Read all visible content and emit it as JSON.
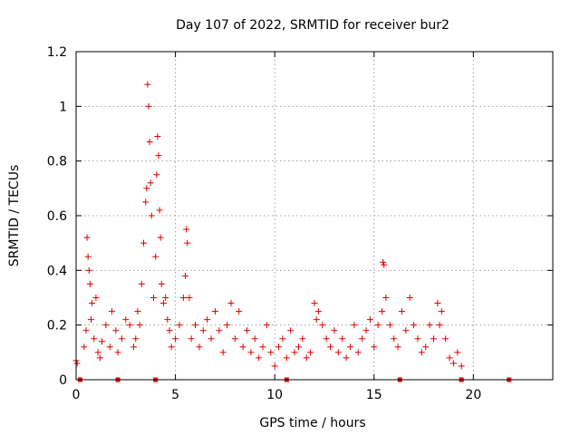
{
  "chart_data": {
    "type": "scatter",
    "title": "Day 107 of 2022, SRMTID for receiver bur2",
    "xlabel": "GPS time / hours",
    "ylabel": "SRMTID / TECUs",
    "xlim": [
      0,
      24
    ],
    "ylim": [
      0,
      1.2
    ],
    "x_ticks": [
      0,
      5,
      10,
      15,
      20
    ],
    "y_ticks": [
      0,
      0.2,
      0.4,
      0.6,
      0.8,
      1,
      1.2
    ],
    "x_tick_labels": [
      "0",
      "5",
      "10",
      "15",
      "20"
    ],
    "y_tick_labels": [
      "0",
      "0.2",
      "0.4",
      "0.6",
      "0.8",
      "1",
      "1.2"
    ],
    "grid": true,
    "marker": "+",
    "color": "#e00000",
    "series": [
      {
        "name": "SRMTID",
        "x": [
          0.0,
          0.05,
          0.4,
          0.5,
          0.55,
          0.6,
          0.65,
          0.7,
          0.75,
          0.8,
          0.9,
          1.0,
          1.1,
          1.2,
          1.3,
          1.5,
          1.7,
          1.8,
          2.0,
          2.1,
          2.3,
          2.5,
          2.7,
          2.9,
          3.0,
          3.1,
          3.2,
          3.3,
          3.4,
          3.5,
          3.55,
          3.6,
          3.65,
          3.7,
          3.75,
          3.8,
          3.9,
          4.0,
          4.05,
          4.1,
          4.15,
          4.2,
          4.25,
          4.3,
          4.4,
          4.5,
          4.6,
          4.7,
          4.8,
          5.0,
          5.2,
          5.4,
          5.5,
          5.55,
          5.6,
          5.7,
          5.8,
          6.0,
          6.2,
          6.4,
          6.6,
          6.8,
          7.0,
          7.2,
          7.4,
          7.6,
          7.8,
          8.0,
          8.2,
          8.4,
          8.6,
          8.8,
          9.0,
          9.2,
          9.4,
          9.6,
          9.8,
          10.0,
          10.2,
          10.4,
          10.6,
          10.8,
          11.0,
          11.2,
          11.4,
          11.6,
          11.8,
          12.0,
          12.1,
          12.2,
          12.4,
          12.6,
          12.8,
          13.0,
          13.2,
          13.4,
          13.6,
          13.8,
          14.0,
          14.2,
          14.4,
          14.6,
          14.8,
          15.0,
          15.2,
          15.4,
          15.45,
          15.5,
          15.6,
          15.8,
          16.0,
          16.2,
          16.4,
          16.6,
          16.8,
          17.0,
          17.2,
          17.4,
          17.6,
          17.8,
          18.0,
          18.2,
          18.3,
          18.4,
          18.6,
          18.8,
          19.0,
          19.2,
          19.4
        ],
        "y": [
          0.07,
          0.06,
          0.12,
          0.18,
          0.52,
          0.45,
          0.4,
          0.35,
          0.22,
          0.28,
          0.15,
          0.3,
          0.1,
          0.08,
          0.14,
          0.2,
          0.12,
          0.25,
          0.18,
          0.1,
          0.15,
          0.22,
          0.2,
          0.12,
          0.15,
          0.25,
          0.2,
          0.35,
          0.5,
          0.65,
          0.7,
          1.08,
          1.0,
          0.87,
          0.72,
          0.6,
          0.3,
          0.45,
          0.75,
          0.89,
          0.82,
          0.62,
          0.52,
          0.35,
          0.28,
          0.3,
          0.22,
          0.18,
          0.12,
          0.15,
          0.2,
          0.3,
          0.38,
          0.55,
          0.5,
          0.3,
          0.15,
          0.2,
          0.12,
          0.18,
          0.22,
          0.15,
          0.25,
          0.18,
          0.1,
          0.2,
          0.28,
          0.15,
          0.25,
          0.12,
          0.18,
          0.1,
          0.15,
          0.08,
          0.12,
          0.2,
          0.1,
          0.05,
          0.12,
          0.15,
          0.08,
          0.18,
          0.1,
          0.12,
          0.15,
          0.08,
          0.1,
          0.28,
          0.22,
          0.25,
          0.2,
          0.15,
          0.12,
          0.18,
          0.1,
          0.15,
          0.08,
          0.12,
          0.2,
          0.1,
          0.15,
          0.18,
          0.22,
          0.12,
          0.2,
          0.25,
          0.43,
          0.42,
          0.3,
          0.2,
          0.15,
          0.12,
          0.25,
          0.18,
          0.3,
          0.2,
          0.15,
          0.1,
          0.12,
          0.2,
          0.15,
          0.28,
          0.2,
          0.25,
          0.15,
          0.08,
          0.06,
          0.1,
          0.05
        ]
      }
    ],
    "baseline_markers_x": [
      0.2,
      2.1,
      4.0,
      10.6,
      16.3,
      19.4,
      21.8
    ]
  }
}
